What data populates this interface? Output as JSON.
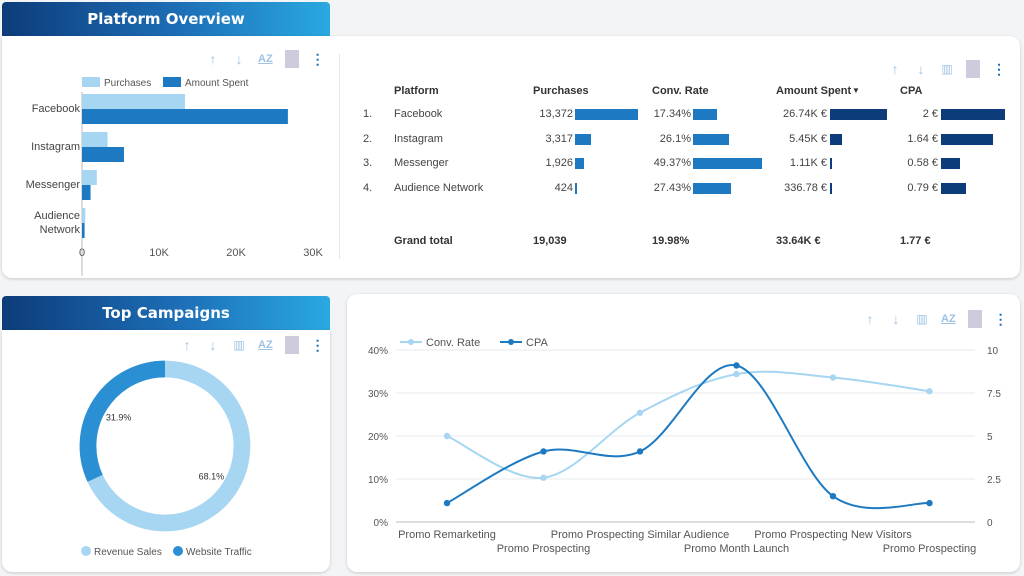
{
  "platform_overview": {
    "title": "Platform Overview",
    "legend": [
      "Purchases",
      "Amount Spent"
    ],
    "x_ticks": [
      "0",
      "10K",
      "20K",
      "30K"
    ],
    "categories": [
      "Facebook",
      "Instagram",
      "Messenger",
      "Audience Network"
    ]
  },
  "table": {
    "headers": [
      "Platform",
      "Purchases",
      "Conv. Rate",
      "Amount Spent",
      "CPA"
    ],
    "rows": [
      {
        "idx": "1.",
        "platform": "Facebook",
        "purchases": "13,372",
        "conv": "17.34%",
        "spent": "26.74K €",
        "cpa": "2 €"
      },
      {
        "idx": "2.",
        "platform": "Instagram",
        "purchases": "3,317",
        "conv": "26.1%",
        "spent": "5.45K €",
        "cpa": "1.64 €"
      },
      {
        "idx": "3.",
        "platform": "Messenger",
        "purchases": "1,926",
        "conv": "49.37%",
        "spent": "1.11K €",
        "cpa": "0.58 €"
      },
      {
        "idx": "4.",
        "platform": "Audience Network",
        "purchases": "424",
        "conv": "27.43%",
        "spent": "336.78 €",
        "cpa": "0.79 €"
      }
    ],
    "total": {
      "label": "Grand total",
      "purchases": "19,039",
      "conv": "19.98%",
      "spent": "33.64K €",
      "cpa": "1.77 €"
    }
  },
  "top_campaigns": {
    "title": "Top Campaigns",
    "legend": [
      "Revenue Sales",
      "Website Traffic"
    ]
  },
  "colors": {
    "light": "#a6d6f2",
    "dark": "#1d7ac2",
    "navy": "#0d3c7a",
    "mid": "#2b8fd3"
  },
  "chart_data": [
    {
      "type": "bar",
      "orientation": "horizontal",
      "categories": [
        "Facebook",
        "Instagram",
        "Messenger",
        "Audience Network"
      ],
      "series": [
        {
          "name": "Purchases",
          "values": [
            13372,
            3317,
            1926,
            424
          ]
        },
        {
          "name": "Amount Spent",
          "values": [
            26740,
            5450,
            1110,
            336.78
          ]
        }
      ],
      "xlim": [
        0,
        30000
      ],
      "legend": "top"
    },
    {
      "type": "table",
      "bar_columns": {
        "purchases": [
          13372,
          3317,
          1926,
          424
        ],
        "conv_rate": [
          17.34,
          26.1,
          49.37,
          27.43
        ],
        "amount_spent": [
          26740,
          5450,
          1110,
          336.78
        ],
        "cpa": [
          2,
          1.64,
          0.58,
          0.79
        ]
      }
    },
    {
      "type": "pie",
      "donut": true,
      "labels": [
        "Revenue Sales",
        "Website Traffic"
      ],
      "values": [
        68.1,
        31.9
      ],
      "value_labels": [
        "68.1%",
        "31.9%"
      ],
      "legend": "bottom"
    },
    {
      "type": "line",
      "categories": [
        "Promo Remarketing",
        "Promo Prospecting",
        "Promo Prospecting Similar Audience",
        "Promo Month Launch",
        "Promo Prospecting New Visitors",
        "Promo Prospecting"
      ],
      "series": [
        {
          "name": "Conv. Rate",
          "axis": "left",
          "values": [
            20,
            10.3,
            25.4,
            34.4,
            33.6,
            30.4
          ]
        },
        {
          "name": "CPA",
          "axis": "right",
          "values": [
            1.1,
            4.1,
            4.1,
            9.1,
            1.5,
            1.1
          ]
        }
      ],
      "y_left": {
        "lim": [
          0,
          40
        ],
        "ticks": [
          "0%",
          "10%",
          "20%",
          "30%",
          "40%"
        ]
      },
      "y_right": {
        "lim": [
          0,
          10
        ],
        "ticks": [
          "0",
          "2.5",
          "5",
          "7.5",
          "10"
        ]
      },
      "legend": "top-left",
      "grid": true
    }
  ]
}
